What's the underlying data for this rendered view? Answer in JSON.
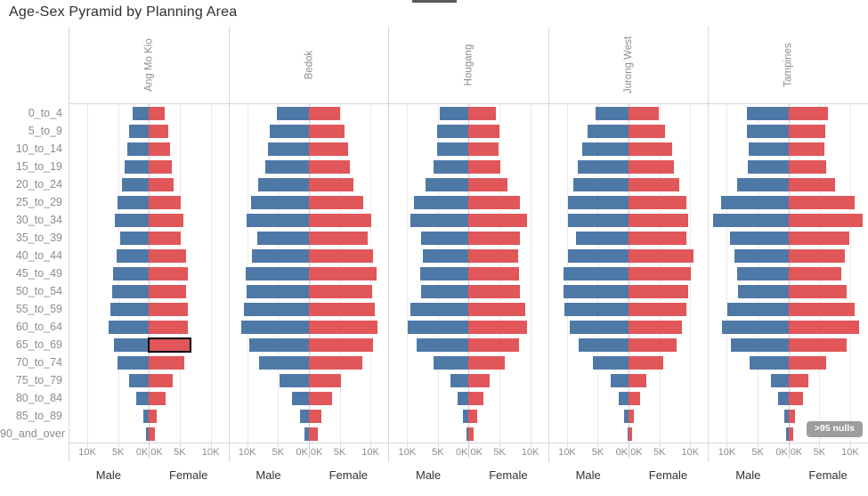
{
  "title": "Age-Sex Pyramid by Planning Area",
  "nulls_badge": ">95 nulls",
  "colors": {
    "male_bar": "#4e79a7",
    "female_bar": "#e15759",
    "highlight_border": "#000000",
    "axis_text": "#8c8c8c",
    "sex_label_text": "#333333",
    "badge_background": "#9d9d9d"
  },
  "axis": {
    "male_label": "Male",
    "female_label": "Female",
    "ticks": [
      {
        "value_k": 0,
        "label": "0K"
      },
      {
        "value_k": 5,
        "label": "5K"
      },
      {
        "value_k": 10,
        "label": "10K"
      }
    ],
    "half_max_k": 12.9
  },
  "highlight": {
    "area": "Ang Mo Kio",
    "age_group": "65_to_69",
    "sex": "female"
  },
  "chart_data": {
    "type": "bar",
    "subtype": "population_pyramid_small_multiples",
    "title": "Age-Sex Pyramid by Planning Area",
    "units": "thousands (K)",
    "grid": true,
    "x_axis": {
      "half_range_k": [
        0,
        12.9
      ],
      "ticks_k": [
        0,
        5,
        10
      ],
      "male_side": "left",
      "female_side": "right"
    },
    "age_groups": [
      "0_to_4",
      "5_to_9",
      "10_to_14",
      "15_to_19",
      "20_to_24",
      "25_to_29",
      "30_to_34",
      "35_to_39",
      "40_to_44",
      "45_to_49",
      "50_to_54",
      "55_to_59",
      "60_to_64",
      "65_to_69",
      "70_to_74",
      "75_to_79",
      "80_to_84",
      "85_to_89",
      "90_and_over"
    ],
    "areas": [
      {
        "name": "Ang Mo Kio",
        "male_k": [
          2.7,
          3.2,
          3.5,
          4.0,
          4.4,
          5.1,
          5.5,
          4.7,
          5.3,
          5.8,
          5.9,
          6.2,
          6.6,
          5.7,
          5.1,
          3.2,
          2.1,
          0.9,
          0.5
        ],
        "female_k": [
          2.5,
          3.1,
          3.4,
          3.7,
          4.0,
          5.1,
          5.6,
          5.2,
          6.0,
          6.3,
          6.0,
          6.3,
          6.3,
          6.7,
          5.8,
          3.8,
          2.7,
          1.3,
          0.9
        ]
      },
      {
        "name": "Bedok",
        "male_k": [
          5.2,
          6.3,
          6.7,
          7.0,
          8.2,
          9.4,
          10.1,
          8.4,
          9.3,
          10.2,
          10.1,
          10.5,
          11.0,
          9.7,
          8.1,
          4.7,
          2.8,
          1.4,
          0.7
        ],
        "female_k": [
          5.1,
          5.8,
          6.3,
          6.7,
          7.3,
          8.9,
          10.2,
          9.5,
          10.4,
          11.0,
          10.3,
          10.7,
          11.2,
          10.4,
          8.7,
          5.2,
          3.8,
          2.1,
          1.4
        ]
      },
      {
        "name": "Hougang",
        "male_k": [
          4.7,
          5.1,
          5.2,
          5.7,
          7.0,
          8.9,
          9.4,
          7.7,
          7.5,
          7.9,
          7.7,
          9.4,
          9.9,
          8.4,
          5.7,
          3.0,
          1.8,
          0.9,
          0.3
        ],
        "female_k": [
          4.4,
          5.0,
          4.9,
          5.2,
          6.3,
          8.3,
          9.4,
          8.3,
          8.0,
          8.1,
          8.3,
          9.2,
          9.4,
          8.2,
          5.8,
          3.4,
          2.4,
          1.4,
          0.8
        ]
      },
      {
        "name": "Jurong West",
        "male_k": [
          5.3,
          6.6,
          7.5,
          8.3,
          9.0,
          9.9,
          9.8,
          8.6,
          9.9,
          10.5,
          10.5,
          10.4,
          9.6,
          8.1,
          5.8,
          2.9,
          1.6,
          0.7,
          0.2
        ],
        "female_k": [
          4.9,
          5.9,
          7.0,
          7.4,
          8.2,
          9.4,
          9.6,
          9.4,
          10.6,
          10.1,
          9.6,
          9.4,
          8.7,
          7.8,
          5.6,
          2.9,
          1.8,
          0.8,
          0.5
        ]
      },
      {
        "name": "Tampines",
        "male_k": [
          6.8,
          6.7,
          6.5,
          6.6,
          8.3,
          10.9,
          12.2,
          9.5,
          8.7,
          8.4,
          8.2,
          9.9,
          10.8,
          9.4,
          6.3,
          2.9,
          1.7,
          0.7,
          0.4
        ],
        "female_k": [
          6.4,
          6.0,
          5.8,
          6.1,
          7.6,
          10.7,
          12.1,
          9.8,
          9.2,
          8.6,
          9.4,
          10.8,
          11.4,
          9.4,
          6.1,
          3.2,
          2.3,
          1.1,
          0.8
        ]
      }
    ]
  }
}
